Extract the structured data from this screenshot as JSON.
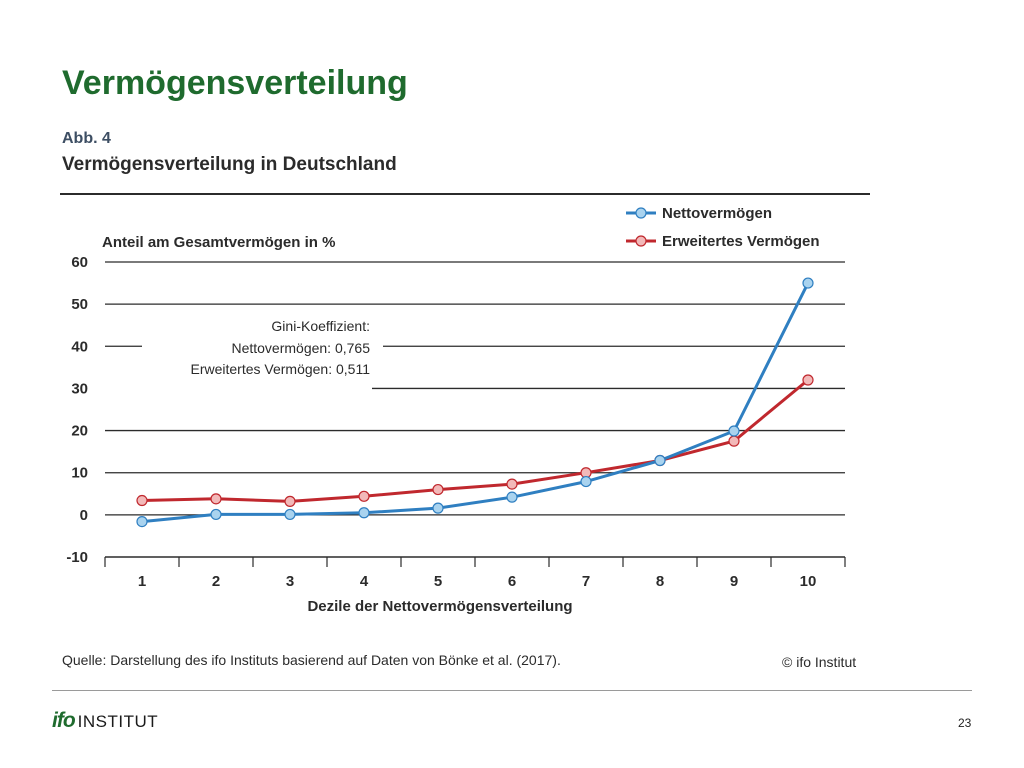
{
  "slide": {
    "title": "Vermögensverteilung",
    "page_number": "23",
    "logo_mark": "ifo",
    "logo_text": "INSTITUT"
  },
  "figure": {
    "label": "Abb. 4",
    "title": "Vermögensverteilung in Deutschland",
    "source": "Quelle: Darstellung des ifo Instituts basierend auf Daten von Bönke et al. (2017).",
    "copyright": "© ifo Institut",
    "annotation": [
      "Gini-Koeffizient:",
      "Nettovermögen: 0,765",
      "Erweitertes Vermögen: 0,511"
    ]
  },
  "colors": {
    "title_green": "#1f6b2e",
    "series_blue": "#2f7fc1",
    "series_blue_marker": "#a9d3ef",
    "series_red": "#c0282e",
    "series_red_marker": "#f2b9b9"
  },
  "chart_data": {
    "type": "line",
    "title": "Vermögensverteilung in Deutschland",
    "xlabel": "Dezile der Nettovermögensverteilung",
    "ylabel": "Anteil am  Gesamtvermögen in %",
    "categories": [
      "1",
      "2",
      "3",
      "4",
      "5",
      "6",
      "7",
      "8",
      "9",
      "10"
    ],
    "ylim": [
      -10,
      60
    ],
    "yticks": [
      "60",
      "50",
      "40",
      "30",
      "20",
      "10",
      "0",
      "-10"
    ],
    "grid": true,
    "legend_position": "top-right",
    "series": [
      {
        "name": "Nettovermögen",
        "color": "#2f7fc1",
        "values": [
          -1.6,
          0.1,
          0.1,
          0.5,
          1.6,
          4.2,
          7.9,
          12.9,
          19.9,
          55.0
        ]
      },
      {
        "name": "Erweitertes Vermögen",
        "color": "#c0282e",
        "values": [
          3.4,
          3.8,
          3.2,
          4.4,
          6.0,
          7.3,
          10.0,
          12.9,
          17.5,
          32.0
        ]
      }
    ]
  }
}
